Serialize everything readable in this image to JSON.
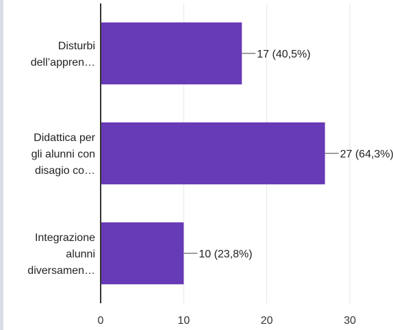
{
  "chart_data": {
    "type": "bar",
    "orientation": "horizontal",
    "categories": [
      [
        "Disturbi",
        "dell’appren…"
      ],
      [
        "Didattica per",
        "gli alunni con",
        "disagio co…"
      ],
      [
        "Integrazione",
        "alunni",
        "diversamen…"
      ]
    ],
    "values": [
      17,
      27,
      10
    ],
    "data_labels": [
      "17 (40,5%)",
      "27 (64,3%)",
      "10 (23,8%)"
    ],
    "xlim": [
      0,
      30
    ],
    "xticks": [
      0,
      10,
      20,
      30
    ],
    "xtick_labels": [
      "0",
      "10",
      "20",
      "30"
    ],
    "grid": true,
    "bar_color": "#673ab7"
  }
}
